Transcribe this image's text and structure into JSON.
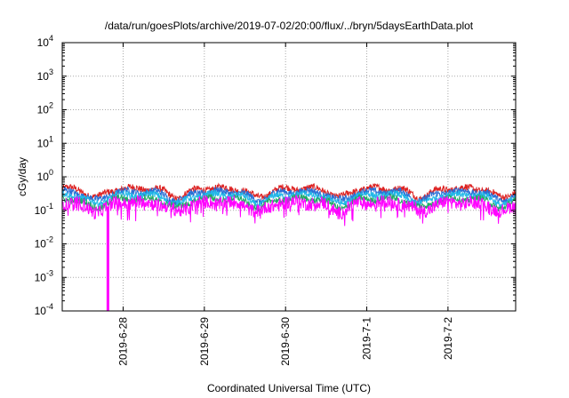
{
  "chart_data": {
    "type": "line",
    "title": "/data/run/goesPlots/archive/2019-07-02/20:00/flux/../bryn/5daysEarthData.plot",
    "xlabel": "Coordinated Universal Time (UTC)",
    "ylabel": "cGy/day",
    "yscale": "log",
    "ylim_exponents": [
      -4,
      4
    ],
    "y_ticks": [
      {
        "base": "10",
        "exp": "4"
      },
      {
        "base": "10",
        "exp": "3"
      },
      {
        "base": "10",
        "exp": "2"
      },
      {
        "base": "10",
        "exp": "1"
      },
      {
        "base": "10",
        "exp": "0"
      },
      {
        "base": "10",
        "exp": "-1"
      },
      {
        "base": "10",
        "exp": "-2"
      },
      {
        "base": "10",
        "exp": "-3"
      },
      {
        "base": "10",
        "exp": "-4"
      }
    ],
    "x_range": [
      "2019-06-27 06:00",
      "2019-07-02 20:00"
    ],
    "x_ticks": [
      {
        "label": "2019-6-28",
        "time": "2019-06-28 00:00"
      },
      {
        "label": "2019-6-29",
        "time": "2019-06-29 00:00"
      },
      {
        "label": "2019-6-30",
        "time": "2019-06-30 00:00"
      },
      {
        "label": "2019-7-1",
        "time": "2019-07-01 00:00"
      },
      {
        "label": "2019-7-2",
        "time": "2019-07-02 00:00"
      }
    ],
    "grid": true,
    "series": [
      {
        "color": "#dd2222",
        "base": 0.45,
        "values_note": ""
      },
      {
        "color": "#2a6fd6",
        "base": 0.36
      },
      {
        "color": "#22b8e8",
        "base": 0.29
      },
      {
        "color": "#22aa66",
        "base": 0.22
      },
      {
        "color": "#ff00ff",
        "base": 0.17
      }
    ],
    "daily_dip_times": [
      "2019-06-27 16:00",
      "2019-06-28 16:00",
      "2019-06-29 16:00",
      "2019-06-30 16:00",
      "2019-07-01 16:00",
      "2019-07-02 16:00"
    ],
    "spike": {
      "time": "2019-06-27 19:30",
      "value_exp": -4
    }
  }
}
